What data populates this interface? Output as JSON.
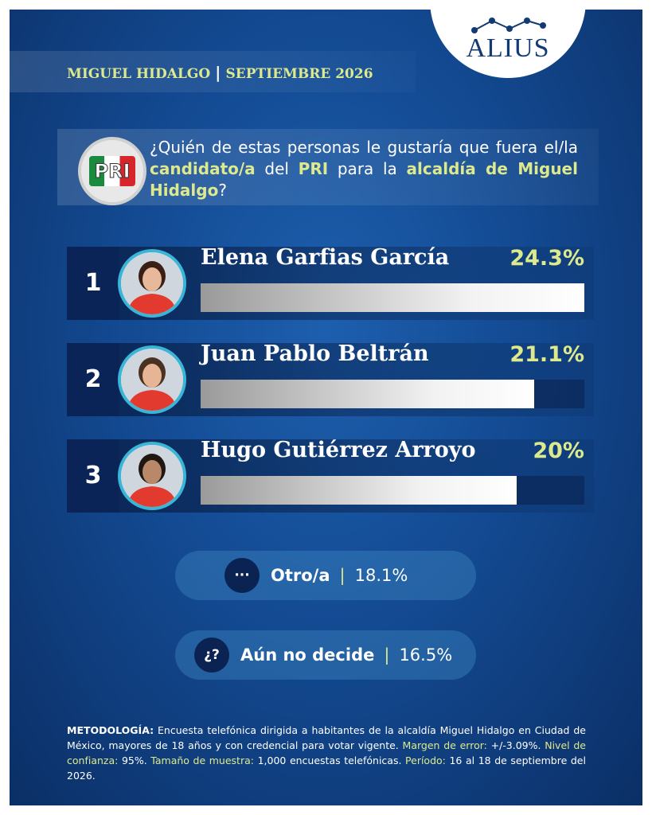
{
  "logo": "ALIUS",
  "header": {
    "place": "MIGUEL HIDALGO",
    "date": "SEPTIEMBRE 2026"
  },
  "party_logo": "PRI",
  "question": {
    "parts": [
      {
        "text": "¿Quién de estas personas le gustaría que fuera el/la ",
        "emphasis": false
      },
      {
        "text": "candidato/a",
        "emphasis": true
      },
      {
        "text": " del ",
        "emphasis": false
      },
      {
        "text": "PRI",
        "emphasis": true
      },
      {
        "text": " para la ",
        "emphasis": false
      },
      {
        "text": "alcaldía de Miguel Hidalgo",
        "emphasis": true
      },
      {
        "text": "?",
        "emphasis": false
      }
    ]
  },
  "candidates": [
    {
      "rank": "1",
      "name": "Elena Garfias García",
      "value": 24.3,
      "value_label": "24.3%"
    },
    {
      "rank": "2",
      "name": "Juan Pablo Beltrán",
      "value": 21.1,
      "value_label": "21.1%"
    },
    {
      "rank": "3",
      "name": "Hugo Gutiérrez Arroyo",
      "value": 20,
      "value_label": "20%"
    }
  ],
  "others": [
    {
      "icon": "···",
      "label": "Otro/a",
      "value": 18.1,
      "value_label": "18.1%"
    },
    {
      "icon": "¿?",
      "label": "Aún no decide",
      "value": 16.5,
      "value_label": "16.5%"
    }
  ],
  "methodology": {
    "parts": [
      {
        "text": "METODOLOGÍA:",
        "style": "bold"
      },
      {
        "text": " Encuesta telefónica dirigida a habitantes de la alcaldía Miguel Hidalgo en Ciudad de México, mayores de 18 años y con credencial para votar vigente. ",
        "style": "plain"
      },
      {
        "text": "Margen de error:",
        "style": "highlight"
      },
      {
        "text": " +/-3.09%. ",
        "style": "plain"
      },
      {
        "text": "Nivel de confianza:",
        "style": "highlight"
      },
      {
        "text": " 95%. ",
        "style": "plain"
      },
      {
        "text": "Tamaño de muestra:",
        "style": "highlight"
      },
      {
        "text": " 1,000 encuestas telefónicas. ",
        "style": "plain"
      },
      {
        "text": "Período:",
        "style": "highlight"
      },
      {
        "text": " 16 al 18 de septiembre del 2026.",
        "style": "plain"
      }
    ]
  }
}
